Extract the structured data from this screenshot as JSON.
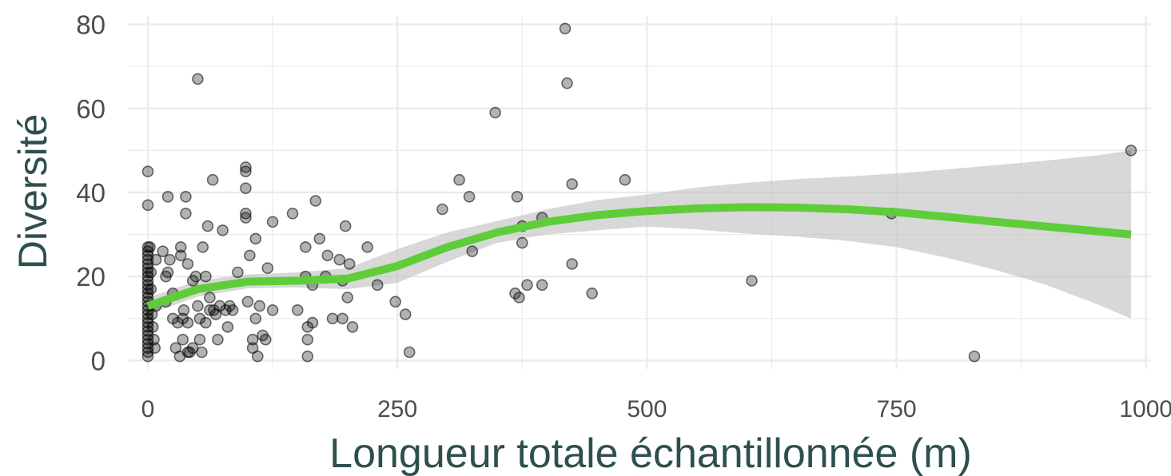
{
  "chart_data": {
    "type": "scatter",
    "xlabel": "Longueur totale échantillonnée (m)",
    "ylabel": "Diversité",
    "xlim": [
      -20,
      1005
    ],
    "ylim": [
      -2,
      82
    ],
    "x_ticks": [
      0,
      250,
      500,
      750,
      1000
    ],
    "x_tick_labels": [
      "0",
      "250",
      "500",
      "750",
      "1000"
    ],
    "y_ticks": [
      0,
      20,
      40,
      60,
      80
    ],
    "y_tick_labels": [
      "0",
      "20",
      "40",
      "60",
      "80"
    ],
    "grid": true,
    "colors": {
      "points": "#000000",
      "smooth_line": "#5fcd3a",
      "confidence_band": "#bebebe",
      "grid": "#ebebeb",
      "axis_title": "#2f4f4f",
      "tick_label": "#4d4d4d"
    },
    "points": [
      [
        0,
        45
      ],
      [
        0,
        37
      ],
      [
        0,
        27
      ],
      [
        0,
        26
      ],
      [
        0,
        25
      ],
      [
        0,
        24
      ],
      [
        0,
        23
      ],
      [
        0,
        22
      ],
      [
        0,
        21
      ],
      [
        0,
        20
      ],
      [
        0,
        19
      ],
      [
        0,
        18
      ],
      [
        0,
        17
      ],
      [
        0,
        16
      ],
      [
        0,
        15
      ],
      [
        0,
        14
      ],
      [
        0,
        13
      ],
      [
        0,
        12
      ],
      [
        0,
        11
      ],
      [
        0,
        10
      ],
      [
        0,
        9
      ],
      [
        0,
        8
      ],
      [
        0,
        7
      ],
      [
        0,
        6
      ],
      [
        0,
        5
      ],
      [
        0,
        4
      ],
      [
        0,
        3
      ],
      [
        0,
        2
      ],
      [
        0,
        1
      ],
      [
        2,
        27
      ],
      [
        3,
        21
      ],
      [
        3,
        17
      ],
      [
        4,
        11
      ],
      [
        5,
        8
      ],
      [
        6,
        5
      ],
      [
        7,
        3
      ],
      [
        8,
        13
      ],
      [
        8,
        24
      ],
      [
        15,
        26
      ],
      [
        18,
        20
      ],
      [
        18,
        14
      ],
      [
        20,
        39
      ],
      [
        20,
        21
      ],
      [
        22,
        24
      ],
      [
        25,
        16
      ],
      [
        25,
        10
      ],
      [
        28,
        3
      ],
      [
        30,
        9
      ],
      [
        32,
        1
      ],
      [
        33,
        27
      ],
      [
        33,
        25
      ],
      [
        35,
        10
      ],
      [
        35,
        5
      ],
      [
        36,
        12
      ],
      [
        38,
        35
      ],
      [
        38,
        39
      ],
      [
        40,
        23
      ],
      [
        40,
        9
      ],
      [
        40,
        2
      ],
      [
        42,
        2
      ],
      [
        45,
        19
      ],
      [
        45,
        3
      ],
      [
        48,
        20
      ],
      [
        50,
        67
      ],
      [
        50,
        13
      ],
      [
        52,
        10
      ],
      [
        52,
        5
      ],
      [
        54,
        2
      ],
      [
        55,
        27
      ],
      [
        58,
        9
      ],
      [
        58,
        20
      ],
      [
        60,
        32
      ],
      [
        62,
        15
      ],
      [
        62,
        12
      ],
      [
        65,
        43
      ],
      [
        66,
        12
      ],
      [
        68,
        11
      ],
      [
        70,
        5
      ],
      [
        72,
        13
      ],
      [
        75,
        31
      ],
      [
        78,
        12
      ],
      [
        80,
        8
      ],
      [
        82,
        13
      ],
      [
        85,
        12
      ],
      [
        90,
        21
      ],
      [
        98,
        46
      ],
      [
        98,
        45
      ],
      [
        98,
        41
      ],
      [
        98,
        35
      ],
      [
        98,
        34
      ],
      [
        100,
        14
      ],
      [
        102,
        25
      ],
      [
        105,
        5
      ],
      [
        105,
        3
      ],
      [
        108,
        29
      ],
      [
        108,
        10
      ],
      [
        110,
        1
      ],
      [
        112,
        13
      ],
      [
        115,
        6
      ],
      [
        118,
        5
      ],
      [
        120,
        22
      ],
      [
        125,
        33
      ],
      [
        125,
        12
      ],
      [
        145,
        35
      ],
      [
        150,
        12
      ],
      [
        158,
        27
      ],
      [
        158,
        20
      ],
      [
        160,
        8
      ],
      [
        160,
        5
      ],
      [
        160,
        1
      ],
      [
        165,
        9
      ],
      [
        165,
        18
      ],
      [
        168,
        38
      ],
      [
        172,
        29
      ],
      [
        178,
        20
      ],
      [
        180,
        25
      ],
      [
        185,
        10
      ],
      [
        192,
        24
      ],
      [
        195,
        10
      ],
      [
        195,
        19
      ],
      [
        198,
        32
      ],
      [
        200,
        15
      ],
      [
        202,
        23
      ],
      [
        205,
        8
      ],
      [
        220,
        27
      ],
      [
        230,
        18
      ],
      [
        248,
        14
      ],
      [
        258,
        11
      ],
      [
        262,
        2
      ],
      [
        295,
        36
      ],
      [
        312,
        43
      ],
      [
        322,
        39
      ],
      [
        325,
        26
      ],
      [
        348,
        59
      ],
      [
        368,
        16
      ],
      [
        370,
        39
      ],
      [
        372,
        15
      ],
      [
        375,
        32
      ],
      [
        375,
        28
      ],
      [
        380,
        18
      ],
      [
        395,
        18
      ],
      [
        395,
        34
      ],
      [
        418,
        79
      ],
      [
        420,
        66
      ],
      [
        425,
        42
      ],
      [
        425,
        23
      ],
      [
        445,
        16
      ],
      [
        478,
        43
      ],
      [
        605,
        19
      ],
      [
        745,
        35
      ],
      [
        828,
        1
      ],
      [
        985,
        50
      ]
    ],
    "smooth": {
      "x": [
        0,
        50,
        100,
        150,
        200,
        250,
        300,
        350,
        400,
        450,
        500,
        550,
        600,
        650,
        700,
        750,
        800,
        850,
        900,
        950,
        985
      ],
      "y": [
        13,
        17,
        18.8,
        19,
        19.5,
        22.5,
        27,
        30.5,
        33,
        34.6,
        35.6,
        36.2,
        36.5,
        36.4,
        36,
        35.3,
        34.2,
        33,
        31.9,
        30.8,
        30
      ],
      "lower": [
        11,
        15.2,
        17.2,
        17.4,
        17,
        18.5,
        23.5,
        28,
        30,
        31,
        31.9,
        31.2,
        30.2,
        29.5,
        28.5,
        27,
        24.5,
        21.5,
        18,
        13.5,
        10
      ],
      "upper": [
        15,
        19,
        20.5,
        21,
        22,
        26.5,
        30.5,
        33.2,
        36,
        38.2,
        39.5,
        41.2,
        42.3,
        43.2,
        43.8,
        44.5,
        45.5,
        46.5,
        47.6,
        48.8,
        50
      ]
    }
  }
}
